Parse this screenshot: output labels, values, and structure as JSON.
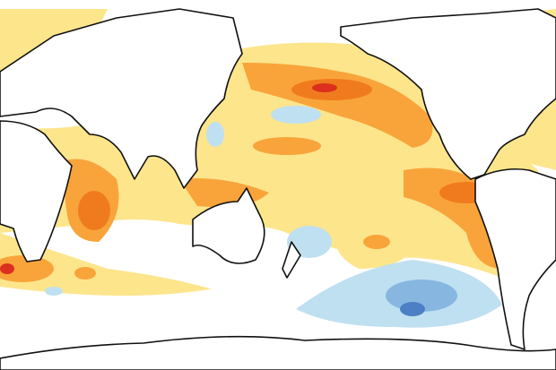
{
  "map": {
    "subject": "sea-surface-temperature-anomaly",
    "projection": "pacific-centered",
    "palette": {
      "light_yellow": "#fde58c",
      "orange": "#f9a43a",
      "dark_orange": "#f07b1e",
      "red": "#dd2f1d",
      "light_blue": "#bfe0f0",
      "blue": "#87b6e0",
      "dark_blue": "#4c7fc4",
      "land": "#ffffff",
      "coastline": "#111111"
    }
  }
}
